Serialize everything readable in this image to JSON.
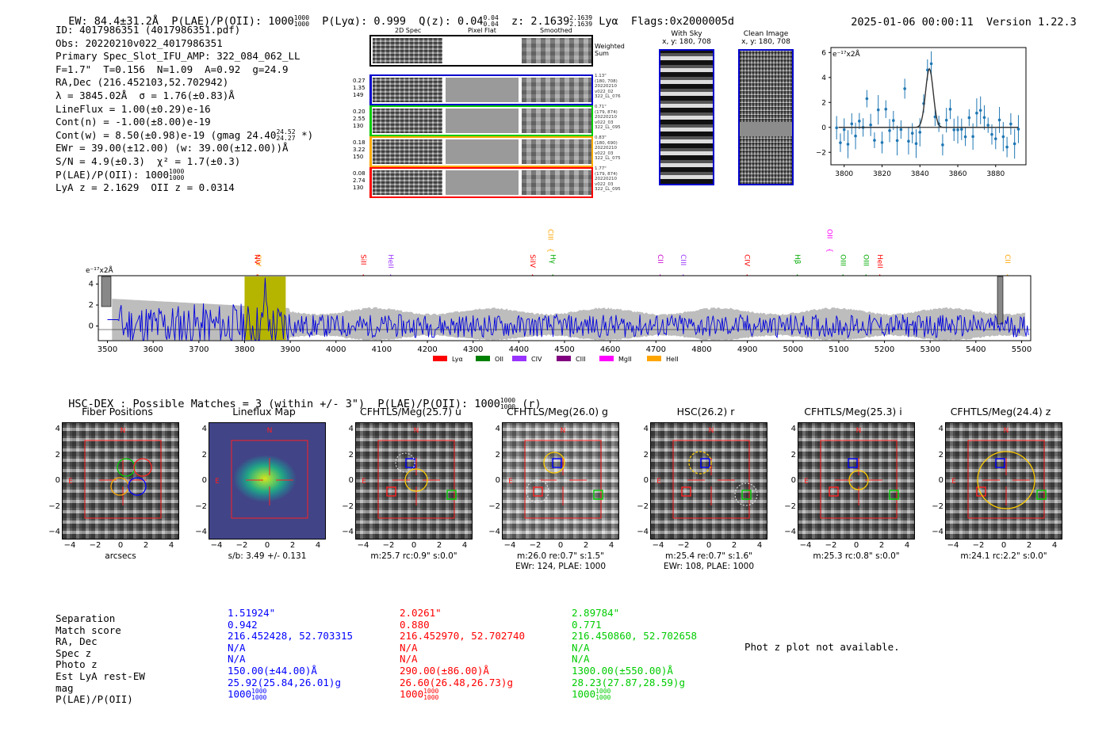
{
  "header": {
    "ew": "EW: 84.4±31.2Å",
    "plae_label": "P(LAE)/P(OII): 1000",
    "plae_hi": "1000",
    "plae_lo": "1000",
    "plya": "P(Lyα): 0.999",
    "qz_label": "Q(z): 0.04",
    "qz_hi": "0.04",
    "qz_lo": "0.04",
    "z_label": "z: 2.1639",
    "z_hi": "2.1639",
    "z_lo": "2.1639",
    "line": "Lyα",
    "flags": "Flags:0x2000005d",
    "timestamp": "2025-01-06 00:00:11",
    "version": "Version 1.22.3"
  },
  "info": {
    "id": "ID: 4017986351 (4017986351.pdf)",
    "obs": "Obs: 20220210v022_4017986351",
    "primary": "Primary Spec_Slot_IFU_AMP: 322_084_062_LL",
    "fit": "F=1.7\"  T=0.156  N=1.09  A=0.92  g=24.9",
    "radec": "RA,Dec (216.452103,52.702942)",
    "lambda": "λ = 3845.02Å  σ = 1.76(±0.83)Å",
    "lineflux": "LineFlux = 1.00(±0.29)e-16",
    "contn": "Cont(n) = -1.00(±8.00)e-19",
    "contw": "Cont(w) = 8.50(±0.98)e-19 (gmag 24.40",
    "contw_hi": "24.52",
    "contw_lo": "24.27",
    "contw_end": " *)",
    "ewr": "EWr = 39.00(±12.00) (w: 39.00(±12.00))Å",
    "sn": "S/N = 4.9(±0.3)  χ² = 1.7(±0.3)",
    "plae": "P(LAE)/P(OII): 1000",
    "plae_hi": "1000",
    "plae_lo": "1000",
    "lyaz": "LyA z = 2.1629  OII z = 0.0314"
  },
  "fiber_panel": {
    "col_titles": [
      "2D Spec",
      "Pixel Flat",
      "Smoothed"
    ],
    "weighted_sum": "Weighted\nSum",
    "rows": [
      {
        "left": [
          "0.27",
          "1.35",
          "149"
        ],
        "right": [
          "1.13\"",
          "(180, 708)",
          "20220210",
          "v022_02",
          "322_LL_076"
        ],
        "color": "#0000cc"
      },
      {
        "left": [
          "0.20",
          "2.55",
          "130"
        ],
        "right": [
          "0.71\"",
          "(179, 874)",
          "20220210",
          "v022_03",
          "322_LL_095"
        ],
        "color": "#00cc00"
      },
      {
        "left": [
          "0.18",
          "3.22",
          "150"
        ],
        "right": [
          "0.83\"",
          "(180, 690)",
          "20220210",
          "v022_03",
          "322_LL_075"
        ],
        "color": "#ffaa00"
      },
      {
        "left": [
          "0.08",
          "2.74",
          "130"
        ],
        "right": [
          "1.77\"",
          "(179, 874)",
          "20220210",
          "v022_03",
          "322_LL_095"
        ],
        "color": "#ff0000"
      }
    ]
  },
  "sky": {
    "title": "With Sky",
    "coords": "x, y: 180, 708"
  },
  "clean": {
    "title": "Clean Image",
    "coords": "x, y: 180, 708"
  },
  "zoom_plot": {
    "unit": "e⁻¹⁷x2Å",
    "yticks": [
      "6",
      "4",
      "2",
      "0",
      "−2"
    ],
    "xticks": [
      "3800",
      "3820",
      "3840",
      "3860",
      "3880"
    ]
  },
  "spectrum": {
    "unit": "e⁻¹⁷x2Å",
    "yticks": [
      "4",
      "2",
      "0"
    ],
    "xticks": [
      "3500",
      "3600",
      "3700",
      "3800",
      "3900",
      "4000",
      "4100",
      "4200",
      "4300",
      "4400",
      "4500",
      "4600",
      "4700",
      "4800",
      "4900",
      "5000",
      "5100",
      "5200",
      "5300",
      "5400",
      "5500"
    ],
    "line_labels": [
      {
        "text": "CIV",
        "color": "#ffa500",
        "x": 3830
      },
      {
        "text": "NV",
        "color": "#ff0000",
        "x": 3828
      },
      {
        "text": "SiII",
        "color": "#ff0000",
        "x": 4060
      },
      {
        "text": "HeII",
        "color": "#9933ff",
        "x": 4120
      },
      {
        "text": "SiIV",
        "color": "#ff0000",
        "x": 4431
      },
      {
        "text": "CIII",
        "color": "#ffa500",
        "x": 4470
      },
      {
        "text": "Hγ",
        "color": "#00aa00",
        "x": 4475
      },
      {
        "text": "CII",
        "color": "#cc00cc",
        "x": 4710
      },
      {
        "text": "CIII",
        "color": "#9933ff",
        "x": 4760
      },
      {
        "text": "CIV",
        "color": "#ff0000",
        "x": 4900
      },
      {
        "text": "Hβ",
        "color": "#00aa00",
        "x": 5010
      },
      {
        "text": "OII",
        "color": "#ff00ff",
        "x": 5080
      },
      {
        "text": "OIII",
        "color": "#00aa00",
        "x": 5110
      },
      {
        "text": "OIII",
        "color": "#00aa00",
        "x": 5160
      },
      {
        "text": "HeII",
        "color": "#ff0000",
        "x": 5190
      },
      {
        "text": "CII",
        "color": "#ffa500",
        "x": 5470
      }
    ],
    "legend": [
      {
        "label": "Lyα",
        "color": "#ff0000"
      },
      {
        "label": "OII",
        "color": "#008000"
      },
      {
        "label": "CIV",
        "color": "#9933ff"
      },
      {
        "label": "CIII",
        "color": "#800080"
      },
      {
        "label": "MgII",
        "color": "#ff00ff"
      },
      {
        "label": "HeII",
        "color": "#ffa500"
      }
    ]
  },
  "matches": {
    "header": "HSC-DEX : Possible Matches = 3 (within +/- 3\")  P(LAE)/P(OII): 1000",
    "hi": "1000",
    "lo": "1000",
    "band": "(r)"
  },
  "cutouts": [
    {
      "title": "Fiber Positions",
      "caption1": "arcsecs",
      "caption2": ""
    },
    {
      "title": "Lineflux Map",
      "caption1": "s/b: 3.49 +/- 0.131",
      "caption2": ""
    },
    {
      "title": "CFHTLS/Meg(25.7) u",
      "caption1": "m:25.7 rc:0.9\"  s:0.0\"",
      "caption2": ""
    },
    {
      "title": "CFHTLS/Meg(26.0) g",
      "caption1": "m:26.0  re:0.7\"  s:1.5\"",
      "caption2": "EWr: 124, PLAE: 1000"
    },
    {
      "title": "HSC(26.2) r",
      "caption1": "m:25.4  re:0.7\"  s:1.6\"",
      "caption2": "EWr: 108, PLAE: 1000"
    },
    {
      "title": "CFHTLS/Meg(25.3) i",
      "caption1": "m:25.3 rc:0.8\"  s:0.0\"",
      "caption2": ""
    },
    {
      "title": "CFHTLS/Meg(24.4) z",
      "caption1": "m:24.1 rc:2.2\"  s:0.0\"",
      "caption2": ""
    }
  ],
  "cutout_ticks": {
    "y": [
      "4",
      "2",
      "0",
      "−2",
      "−4"
    ],
    "x": [
      "−4",
      "−2",
      "0",
      "2",
      "4"
    ],
    "n": "N",
    "e": "E"
  },
  "table": {
    "labels": [
      "Separation",
      "Match score",
      "RA, Dec",
      "Spec z",
      "Photo z",
      "Est LyA rest-EW",
      "mag",
      "P(LAE)/P(OII)"
    ],
    "columns": [
      {
        "color": "#0000ff",
        "values": [
          "1.51924\"",
          "0.942",
          "216.452428, 52.703315",
          "N/A",
          "N/A",
          "150.00(±44.00)Å",
          "25.92(25.84,26.01)g",
          "1000"
        ],
        "hi": "1000",
        "lo": "1000"
      },
      {
        "color": "#ff0000",
        "values": [
          "2.0261\"",
          "0.880",
          "216.452970, 52.702740",
          "N/A",
          "N/A",
          "290.00(±86.00)Å",
          "26.60(26.48,26.73)g",
          "1000"
        ],
        "hi": "1000",
        "lo": "1000"
      },
      {
        "color": "#00cc00",
        "values": [
          "2.89784\"",
          "0.771",
          "216.450860, 52.702658",
          "N/A",
          "N/A",
          "1300.00(±550.00)Å",
          "28.23(27.87,28.59)g",
          "1000"
        ],
        "hi": "1000",
        "lo": "1000"
      }
    ],
    "photz_note": "Phot z plot not available."
  }
}
